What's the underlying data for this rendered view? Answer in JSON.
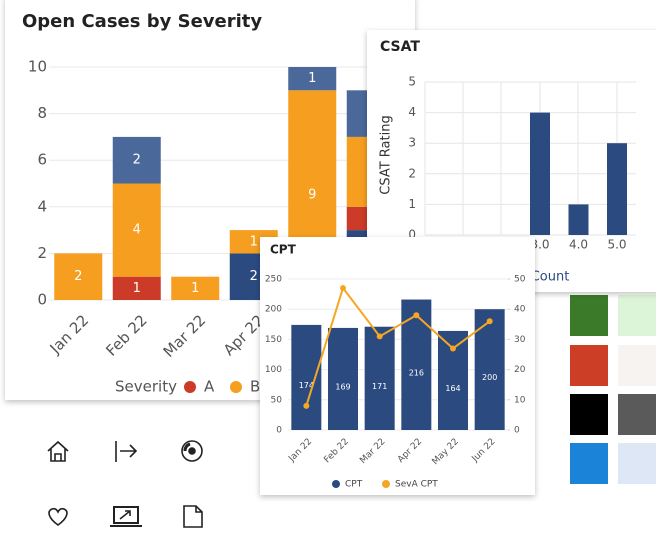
{
  "chart_data": [
    {
      "type": "stacked-bar",
      "title": "Open Cases by Severity",
      "legend_title": "Severity",
      "categories": [
        "Jan 22",
        "Feb 22",
        "Mar 22",
        "Apr 22",
        null,
        null
      ],
      "series": [
        {
          "color": "#2b4a80",
          "values": [
            0,
            0,
            0,
            2,
            0,
            3
          ]
        },
        {
          "name": "A",
          "color": "#cc3b27",
          "values": [
            0,
            1,
            0,
            0,
            0,
            1
          ]
        },
        {
          "name": "B",
          "color": "#f59e1f",
          "values": [
            2,
            4,
            1,
            1,
            9,
            3
          ]
        },
        {
          "color": "#4a6899",
          "values": [
            0,
            2,
            0,
            0,
            1,
            2
          ]
        }
      ],
      "ylim": [
        0,
        10
      ],
      "yticks": [
        0,
        2,
        4,
        6,
        8,
        10
      ],
      "grid": true
    },
    {
      "type": "bar",
      "title": "CSAT",
      "xlabel": "Count",
      "ylabel": "CSAT Rating",
      "categories": [
        "3.0",
        "4.0",
        "5.0"
      ],
      "values": [
        4,
        1,
        3
      ],
      "color": "#2b4a80",
      "ylim": [
        0,
        5
      ],
      "yticks": [
        0,
        1,
        2,
        3,
        4,
        5
      ],
      "grid": true
    },
    {
      "type": "bar-line",
      "title": "CPT",
      "categories": [
        "Jan 22",
        "Feb 22",
        "Mar 22",
        "Apr 22",
        "May 22",
        "Jun 22"
      ],
      "series": [
        {
          "name": "CPT",
          "color": "#2b4a80",
          "values": [
            174,
            169,
            171,
            216,
            164,
            200
          ]
        },
        {
          "name": "SevA CPT",
          "color": "#f5a623",
          "axis": "y2",
          "values": [
            8,
            47,
            31,
            38,
            27,
            36
          ]
        }
      ],
      "ylim": [
        0,
        250
      ],
      "yticks": [
        0,
        50,
        100,
        150,
        200,
        250
      ],
      "y2lim": [
        0,
        50
      ],
      "y2ticks": [
        0,
        10,
        20,
        30,
        40,
        50
      ],
      "grid": true
    }
  ]
}
